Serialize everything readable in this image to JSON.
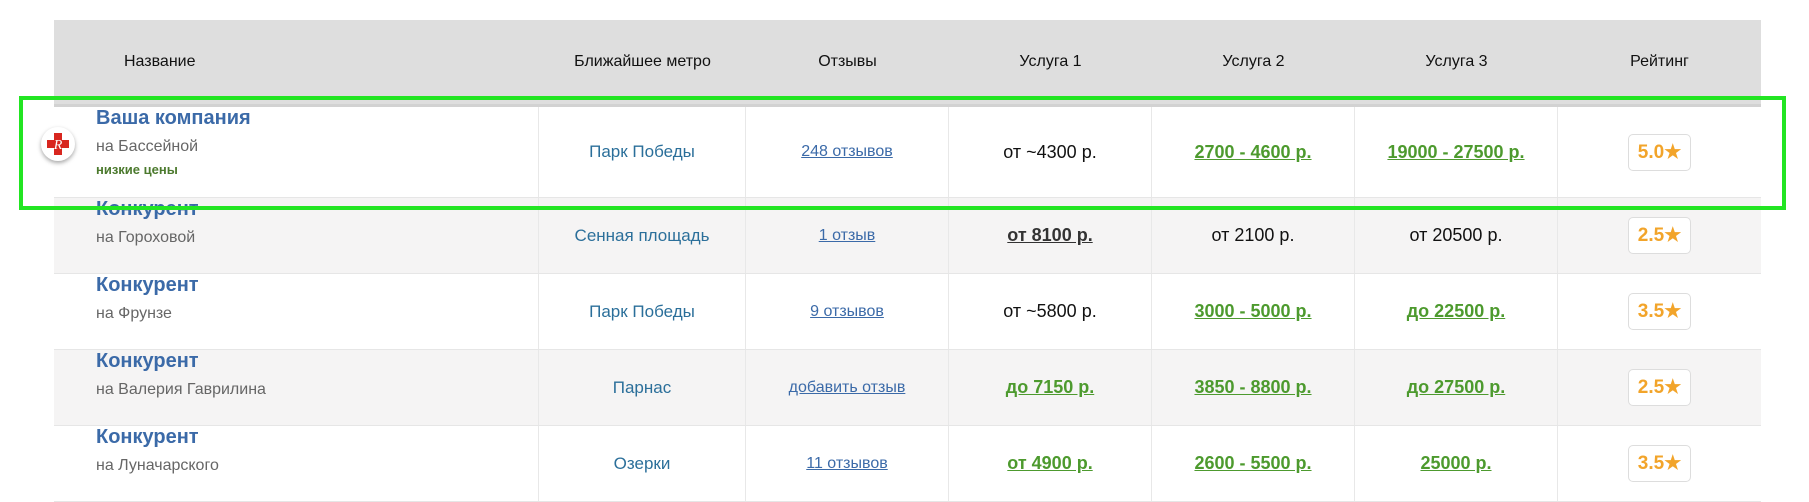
{
  "header": {
    "name": "Название",
    "metro": "Ближайшее метро",
    "reviews": "Отзывы",
    "service1": "Услуга 1",
    "service2": "Услуга 2",
    "service3": "Услуга 3",
    "rating": "Рейтинг"
  },
  "colors": {
    "highlight": "#22e522",
    "link": "#3b6aa8",
    "price_green": "#4d9a2e",
    "rating": "#f2a42a",
    "header_bg": "#dedede"
  },
  "rows": [
    {
      "name": "Ваша компания",
      "address": "на Бассейной",
      "tag": "низкие цены",
      "metro": "Парк Победы",
      "reviews": "248 отзывов",
      "s1": "от ~4300 р.",
      "s2": "2700 - 4600 р.",
      "s3": "19000 - 27500 р.",
      "rating": "5.0"
    },
    {
      "name": "Конкурент",
      "address": "на Гороховой",
      "metro": "Сенная площадь",
      "reviews": "1 отзыв",
      "s1": "от 8100 р.",
      "s2": "от 2100 р.",
      "s3": "от 20500 р.",
      "rating": "2.5"
    },
    {
      "name": "Конкурент",
      "address": "на Фрунзе",
      "metro": "Парк Победы",
      "reviews": "9 отзывов",
      "s1": "от ~5800 р.",
      "s2": "3000 - 5000 р.",
      "s3": "до 22500 р.",
      "rating": "3.5"
    },
    {
      "name": "Конкурент",
      "address": "на Валерия Гаврилина",
      "metro": "Парнас",
      "reviews": "добавить отзыв",
      "s1": "до 7150 р.",
      "s2": "3850 - 8800 р.",
      "s3": "до 27500 р.",
      "rating": "2.5"
    },
    {
      "name": "Конкурент",
      "address": "на Луначарского",
      "metro": "Озерки",
      "reviews": "11 отзывов",
      "s1": "от 4900 р.",
      "s2": "2600 - 5500 р.",
      "s3": "25000 р.",
      "rating": "3.5"
    }
  ]
}
